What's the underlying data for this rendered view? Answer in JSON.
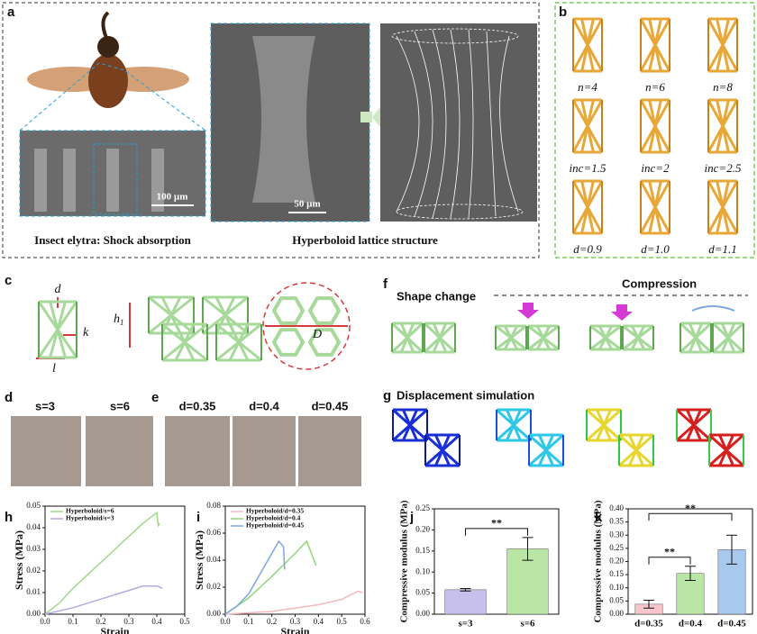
{
  "panels": {
    "a": {
      "label": "a",
      "scale_bar_1": "100 µm",
      "scale_bar_2": "50 µm",
      "caption_left": "Insect elytra: Shock absorption",
      "caption_right": "Hyperboloid lattice structure"
    },
    "b": {
      "label": "b",
      "captions": [
        "n=4",
        "n=6",
        "n=8",
        "inc=1.5",
        "inc=2",
        "inc=2.5",
        "d=0.9",
        "d=1.0",
        "d=1.1"
      ]
    },
    "c": {
      "label": "c",
      "dim_d": "d",
      "dim_k": "k",
      "dim_l": "l",
      "dim_h": {
        "main": "h",
        "sub": "1"
      },
      "dim_D": "D"
    },
    "d": {
      "label": "d",
      "captions": [
        "s=3",
        "s=6"
      ]
    },
    "e": {
      "label": "e",
      "captions": [
        "d=0.35",
        "d=0.4",
        "d=0.45"
      ]
    },
    "f": {
      "label": "f",
      "left": "Shape change",
      "right": "Compression"
    },
    "g": {
      "label": "g",
      "title": "Displacement simulation"
    },
    "h": {
      "label": "h"
    },
    "i": {
      "label": "i"
    },
    "j": {
      "label": "j"
    },
    "k": {
      "label": "k"
    }
  },
  "charts": [
    {
      "type": "line",
      "xlabel": "Strain",
      "ylabel": "Stress (MPa)",
      "legend": "upper left",
      "xlim": [
        0,
        0.5
      ],
      "ylim": [
        0,
        0.05
      ],
      "xticks": [
        {
          "value": 0,
          "label": "0.0"
        },
        0.1,
        0.2,
        0.3,
        0.4,
        0.5
      ],
      "yticks": [
        {
          "value": 0,
          "label": "0.00"
        },
        0.01,
        0.02,
        0.03,
        0.04,
        0.05
      ],
      "series": [
        {
          "name": "Hyperboloid/s=6",
          "color": "#9fd88a",
          "x": [
            0,
            0.05,
            0.1,
            0.15,
            0.2,
            0.25,
            0.3,
            0.35,
            0.4,
            0.405,
            0.41
          ],
          "values": [
            0,
            0.005,
            0.012,
            0.018,
            0.024,
            0.03,
            0.036,
            0.042,
            0.047,
            0.041,
            0.042
          ]
        },
        {
          "name": "Hyperboloid/s=3",
          "color": "#b7a8e0",
          "x": [
            0,
            0.1,
            0.2,
            0.3,
            0.35,
            0.4,
            0.42
          ],
          "values": [
            0,
            0.003,
            0.007,
            0.011,
            0.013,
            0.013,
            0.012
          ]
        }
      ]
    },
    {
      "type": "line",
      "xlabel": "Strain",
      "ylabel": "Stress (MPa)",
      "legend": "upper left",
      "xlim": [
        0,
        0.6
      ],
      "ylim": [
        0,
        0.08
      ],
      "xticks": [
        {
          "value": 0,
          "label": "0.0"
        },
        0.1,
        0.2,
        0.3,
        0.4,
        0.5,
        0.6
      ],
      "yticks": [
        {
          "value": 0,
          "label": "0.00"
        },
        0.02,
        0.04,
        0.06,
        0.08
      ],
      "series": [
        {
          "name": "Hyperboloid/d=0.35",
          "color": "#f4b8bf",
          "x": [
            0,
            0.2,
            0.4,
            0.5,
            0.57,
            0.59
          ],
          "values": [
            0,
            0.002,
            0.007,
            0.011,
            0.017,
            0.016
          ]
        },
        {
          "name": "Hyperboloid/d=0.4",
          "color": "#8fd67a",
          "x": [
            0,
            0.1,
            0.2,
            0.3,
            0.35,
            0.37,
            0.39
          ],
          "values": [
            0,
            0.012,
            0.028,
            0.045,
            0.054,
            0.045,
            0.036
          ]
        },
        {
          "name": "Hyperboloid/d=0.45",
          "color": "#7ea6dc",
          "x": [
            0,
            0.05,
            0.1,
            0.15,
            0.2,
            0.23,
            0.25,
            0.255
          ],
          "values": [
            0,
            0.006,
            0.015,
            0.03,
            0.045,
            0.054,
            0.05,
            0.033
          ]
        }
      ]
    },
    {
      "type": "bar",
      "ylabel": "Compressive modulus (MPa)",
      "categories": [
        "s=3",
        "s=6"
      ],
      "values": [
        0.058,
        0.155
      ],
      "errors": [
        0.003,
        0.027
      ],
      "colors": [
        "#c7c0ec",
        "#b9e6a4"
      ],
      "ylim": [
        0,
        0.25
      ],
      "yticks": [
        {
          "value": 0,
          "label": "0.00"
        },
        0.05,
        {
          "value": 0.1,
          "label": "0.10"
        },
        0.15,
        {
          "value": 0.2,
          "label": "0.20"
        },
        0.25
      ],
      "annotations": [
        "**"
      ]
    },
    {
      "type": "bar",
      "ylabel": "Compressive modulus (MPa)",
      "categories": [
        "d=0.35",
        "d=0.4",
        "d=0.45"
      ],
      "values": [
        0.038,
        0.155,
        0.245
      ],
      "errors": [
        0.015,
        0.027,
        0.055
      ],
      "colors": [
        "#f7c6cc",
        "#b9e6a4",
        "#a9c8ee"
      ],
      "ylim": [
        0,
        0.4
      ],
      "yticks": [
        {
          "value": 0,
          "label": "0.00"
        },
        0.05,
        {
          "value": 0.1,
          "label": "0.10"
        },
        0.15,
        {
          "value": 0.2,
          "label": "0.20"
        },
        0.25,
        {
          "value": 0.3,
          "label": "0.30"
        },
        0.35,
        {
          "value": 0.4,
          "label": "0.40"
        }
      ],
      "annotations": [
        "**",
        "**"
      ]
    }
  ]
}
